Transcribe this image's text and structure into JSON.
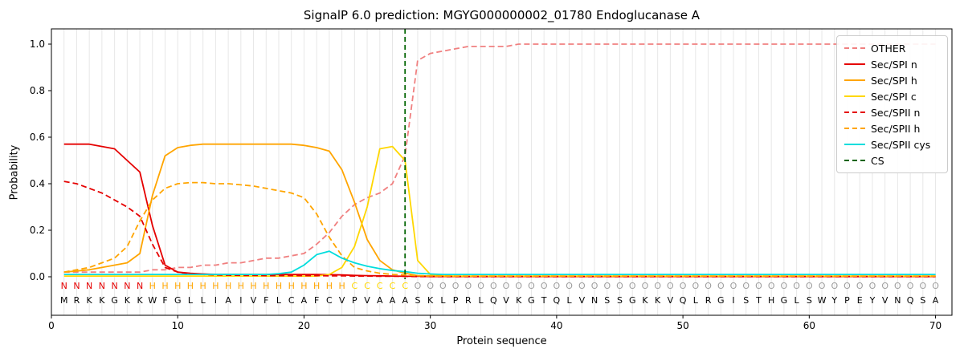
{
  "title": "SignalP 6.0 prediction: MGYG000000002_01780 Endoglucanase A",
  "chart_data": {
    "type": "line",
    "title": "SignalP 6.0 prediction: MGYG000000002_01780 Endoglucanase A",
    "xlabel": "Protein sequence",
    "ylabel": "Probability",
    "xlim": [
      0,
      71.3
    ],
    "ylim": [
      -0.17,
      1.04
    ],
    "xticks": [
      0,
      10,
      20,
      30,
      40,
      50,
      60,
      70
    ],
    "yticks": [
      0.0,
      0.2,
      0.4,
      0.6,
      0.8,
      1.0
    ],
    "grid": "vertical line at each residue position",
    "legend_position": "upper right",
    "sequence": "MRKKGKKWFGLLIAIVFLCAFCVPVAAASKLPRLQVKGTQLVNSSGKKVQLRGISTHGLSWYPEYVNQSA",
    "region_labels": "NNNNNNNHHHHHHHHHHHHHHHHCCCCCOOOOOOOOOOOOOOOOOOOOOOOOOOOOOOOOOOOOOOOOOO",
    "region_colors": {
      "N": "#e50000",
      "H": "#ffa500",
      "C": "#ffd700",
      "O": "#9e9e9e"
    },
    "aa_color": "#000000",
    "cs": {
      "name": "CS",
      "color": "#006400",
      "dashed": true,
      "position": 28
    },
    "series": [
      {
        "name": "OTHER",
        "color": "#f08080",
        "dashed": true,
        "values": [
          0.02,
          0.02,
          0.02,
          0.02,
          0.02,
          0.02,
          0.02,
          0.03,
          0.03,
          0.04,
          0.04,
          0.05,
          0.05,
          0.06,
          0.06,
          0.07,
          0.08,
          0.08,
          0.09,
          0.1,
          0.14,
          0.19,
          0.26,
          0.31,
          0.34,
          0.36,
          0.4,
          0.52,
          0.93,
          0.96,
          0.97,
          0.98,
          0.99,
          0.99,
          0.99,
          0.99,
          1.0,
          1.0,
          1.0,
          1.0,
          1.0,
          1.0,
          1.0,
          1.0,
          1.0,
          1.0,
          1.0,
          1.0,
          1.0,
          1.0,
          1.0,
          1.0,
          1.0,
          1.0,
          1.0,
          1.0,
          1.0,
          1.0,
          1.0,
          1.0,
          1.0,
          1.0,
          1.0,
          1.0,
          1.0,
          1.0,
          1.0,
          1.0,
          1.0,
          1.0
        ]
      },
      {
        "name": "Sec/SPI n",
        "color": "#e50000",
        "dashed": false,
        "values": [
          0.57,
          0.57,
          0.57,
          0.56,
          0.55,
          0.5,
          0.45,
          0.22,
          0.05,
          0.02,
          0.015,
          0.012,
          0.01,
          0.01,
          0.01,
          0.01,
          0.01,
          0.01,
          0.01,
          0.01,
          0.01,
          0.009,
          0.008,
          0.006,
          0.005,
          0.004,
          0.003,
          0.002,
          0.002,
          0.001,
          0.001,
          0.001,
          0.001,
          0.001,
          0.001,
          0.001,
          0.001,
          0.001,
          0.001,
          0.001,
          0.001,
          0.001,
          0.001,
          0.001,
          0.001,
          0.001,
          0.001,
          0.001,
          0.001,
          0.001,
          0.001,
          0.001,
          0.001,
          0.001,
          0.001,
          0.001,
          0.001,
          0.001,
          0.001,
          0.001,
          0.001,
          0.001,
          0.001,
          0.001,
          0.001,
          0.001,
          0.001,
          0.001,
          0.001,
          0.001
        ]
      },
      {
        "name": "Sec/SPI h",
        "color": "#ffa500",
        "dashed": false,
        "values": [
          0.02,
          0.025,
          0.03,
          0.04,
          0.05,
          0.06,
          0.1,
          0.35,
          0.52,
          0.555,
          0.565,
          0.57,
          0.57,
          0.57,
          0.57,
          0.57,
          0.57,
          0.57,
          0.57,
          0.565,
          0.555,
          0.54,
          0.46,
          0.32,
          0.16,
          0.07,
          0.03,
          0.015,
          0.005,
          0.003,
          0.002,
          0.002,
          0.002,
          0.002,
          0.002,
          0.002,
          0.002,
          0.002,
          0.002,
          0.002,
          0.002,
          0.002,
          0.002,
          0.002,
          0.002,
          0.002,
          0.002,
          0.002,
          0.002,
          0.002,
          0.002,
          0.002,
          0.002,
          0.002,
          0.002,
          0.002,
          0.002,
          0.002,
          0.002,
          0.002,
          0.002,
          0.002,
          0.002,
          0.002,
          0.002,
          0.002,
          0.002,
          0.002,
          0.002,
          0.002
        ]
      },
      {
        "name": "Sec/SPI c",
        "color": "#ffd700",
        "dashed": false,
        "values": [
          0.003,
          0.003,
          0.003,
          0.003,
          0.003,
          0.003,
          0.003,
          0.003,
          0.003,
          0.003,
          0.003,
          0.003,
          0.003,
          0.003,
          0.003,
          0.003,
          0.003,
          0.003,
          0.003,
          0.003,
          0.003,
          0.01,
          0.04,
          0.13,
          0.3,
          0.55,
          0.56,
          0.5,
          0.07,
          0.01,
          0.005,
          0.003,
          0.003,
          0.003,
          0.003,
          0.003,
          0.003,
          0.003,
          0.003,
          0.003,
          0.003,
          0.003,
          0.003,
          0.003,
          0.003,
          0.003,
          0.003,
          0.003,
          0.003,
          0.003,
          0.003,
          0.003,
          0.003,
          0.003,
          0.003,
          0.003,
          0.003,
          0.003,
          0.003,
          0.003,
          0.003,
          0.003,
          0.003,
          0.003,
          0.003,
          0.003,
          0.003,
          0.003,
          0.003,
          0.003
        ]
      },
      {
        "name": "Sec/SPII n",
        "color": "#e50000",
        "dashed": true,
        "values": [
          0.41,
          0.4,
          0.38,
          0.36,
          0.33,
          0.3,
          0.26,
          0.14,
          0.04,
          0.02,
          0.012,
          0.01,
          0.008,
          0.007,
          0.006,
          0.006,
          0.005,
          0.005,
          0.005,
          0.005,
          0.005,
          0.004,
          0.004,
          0.003,
          0.003,
          0.002,
          0.002,
          0.002,
          0.001,
          0.001,
          0.001,
          0.001,
          0.001,
          0.001,
          0.001,
          0.001,
          0.001,
          0.001,
          0.001,
          0.001,
          0.001,
          0.001,
          0.001,
          0.001,
          0.001,
          0.001,
          0.001,
          0.001,
          0.001,
          0.001,
          0.001,
          0.001,
          0.001,
          0.001,
          0.001,
          0.001,
          0.001,
          0.001,
          0.001,
          0.001,
          0.001,
          0.001,
          0.001,
          0.001,
          0.001,
          0.001,
          0.001,
          0.001,
          0.001,
          0.001
        ]
      },
      {
        "name": "Sec/SPII h",
        "color": "#ffa500",
        "dashed": true,
        "values": [
          0.02,
          0.03,
          0.04,
          0.06,
          0.08,
          0.13,
          0.24,
          0.33,
          0.38,
          0.4,
          0.405,
          0.405,
          0.4,
          0.4,
          0.395,
          0.39,
          0.38,
          0.37,
          0.36,
          0.34,
          0.27,
          0.17,
          0.09,
          0.04,
          0.025,
          0.015,
          0.01,
          0.008,
          0.005,
          0.004,
          0.003,
          0.003,
          0.003,
          0.003,
          0.003,
          0.003,
          0.003,
          0.003,
          0.003,
          0.003,
          0.003,
          0.003,
          0.003,
          0.003,
          0.003,
          0.003,
          0.003,
          0.003,
          0.003,
          0.003,
          0.003,
          0.003,
          0.003,
          0.003,
          0.003,
          0.003,
          0.003,
          0.003,
          0.003,
          0.003,
          0.003,
          0.003,
          0.003,
          0.003,
          0.003,
          0.003,
          0.003,
          0.003,
          0.003,
          0.003
        ]
      },
      {
        "name": "Sec/SPII cys",
        "color": "#00dddd",
        "dashed": false,
        "values": [
          0.01,
          0.01,
          0.01,
          0.01,
          0.01,
          0.01,
          0.01,
          0.01,
          0.01,
          0.01,
          0.01,
          0.01,
          0.01,
          0.01,
          0.01,
          0.01,
          0.01,
          0.013,
          0.02,
          0.05,
          0.095,
          0.11,
          0.08,
          0.06,
          0.045,
          0.035,
          0.027,
          0.022,
          0.015,
          0.012,
          0.01,
          0.01,
          0.01,
          0.01,
          0.01,
          0.01,
          0.01,
          0.01,
          0.01,
          0.01,
          0.01,
          0.01,
          0.01,
          0.01,
          0.01,
          0.01,
          0.01,
          0.01,
          0.01,
          0.01,
          0.01,
          0.01,
          0.01,
          0.01,
          0.01,
          0.01,
          0.01,
          0.01,
          0.01,
          0.01,
          0.01,
          0.01,
          0.01,
          0.01,
          0.01,
          0.01,
          0.01,
          0.01,
          0.01,
          0.01
        ]
      }
    ]
  }
}
